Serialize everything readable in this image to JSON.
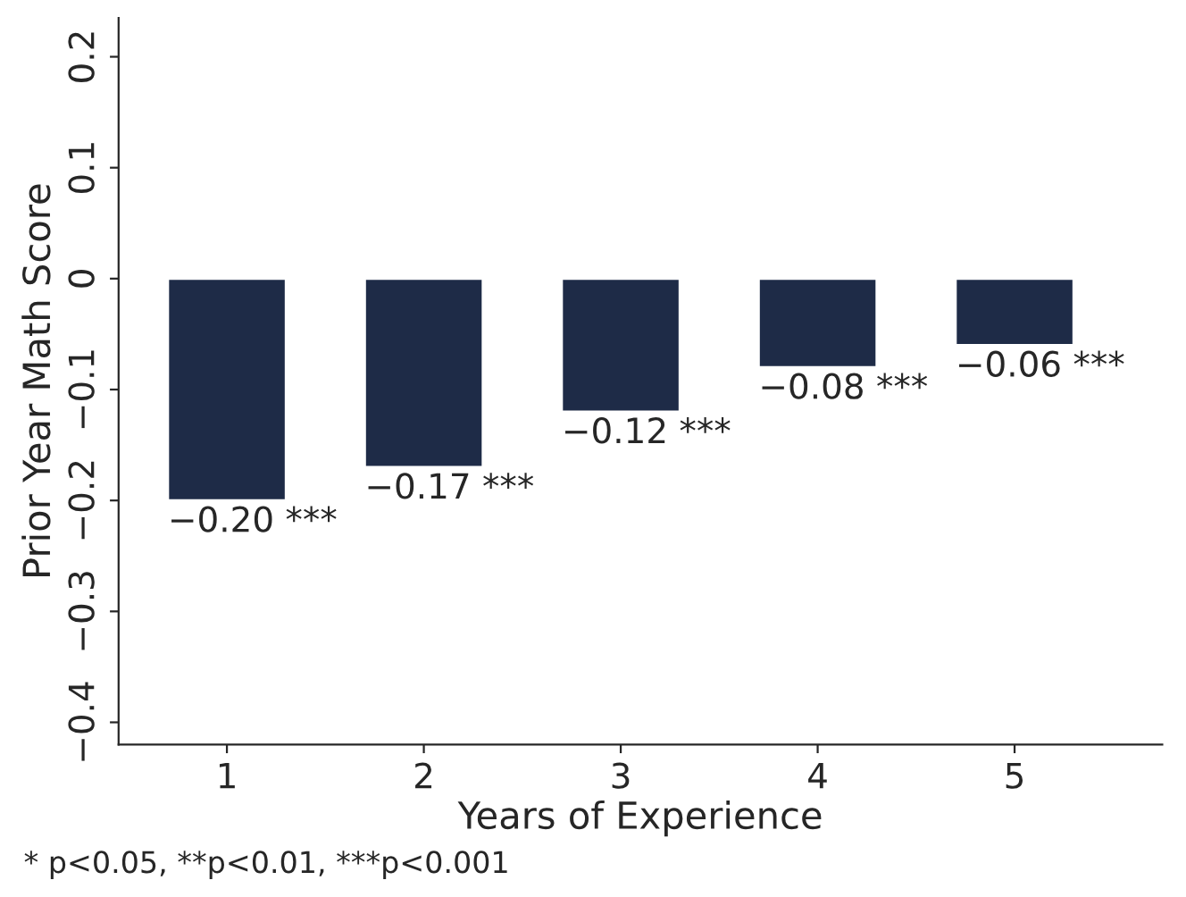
{
  "chart_data": {
    "type": "bar",
    "xlabel": "Years of Experience",
    "ylabel": "Prior Year Math Score",
    "categories": [
      "1",
      "2",
      "3",
      "4",
      "5"
    ],
    "values": [
      -0.2,
      -0.17,
      -0.12,
      -0.08,
      -0.06
    ],
    "value_labels": [
      "−0.20 ***",
      "−0.17 ***",
      "−0.12 ***",
      "−0.08 ***",
      "−0.06 ***"
    ],
    "color": "#1e2b47",
    "ylim": [
      -0.42,
      0.235
    ],
    "yticks": [
      {
        "value": -0.4,
        "label": "−0.4"
      },
      {
        "value": -0.3,
        "label": "−0.3"
      },
      {
        "value": -0.2,
        "label": "−0.2"
      },
      {
        "value": -0.1,
        "label": "−0.1"
      },
      0,
      0.1,
      0.2
    ],
    "grid": false,
    "legend": false,
    "annotations": [
      "* p<0.05, **p<0.01, ***p<0.001"
    ]
  }
}
